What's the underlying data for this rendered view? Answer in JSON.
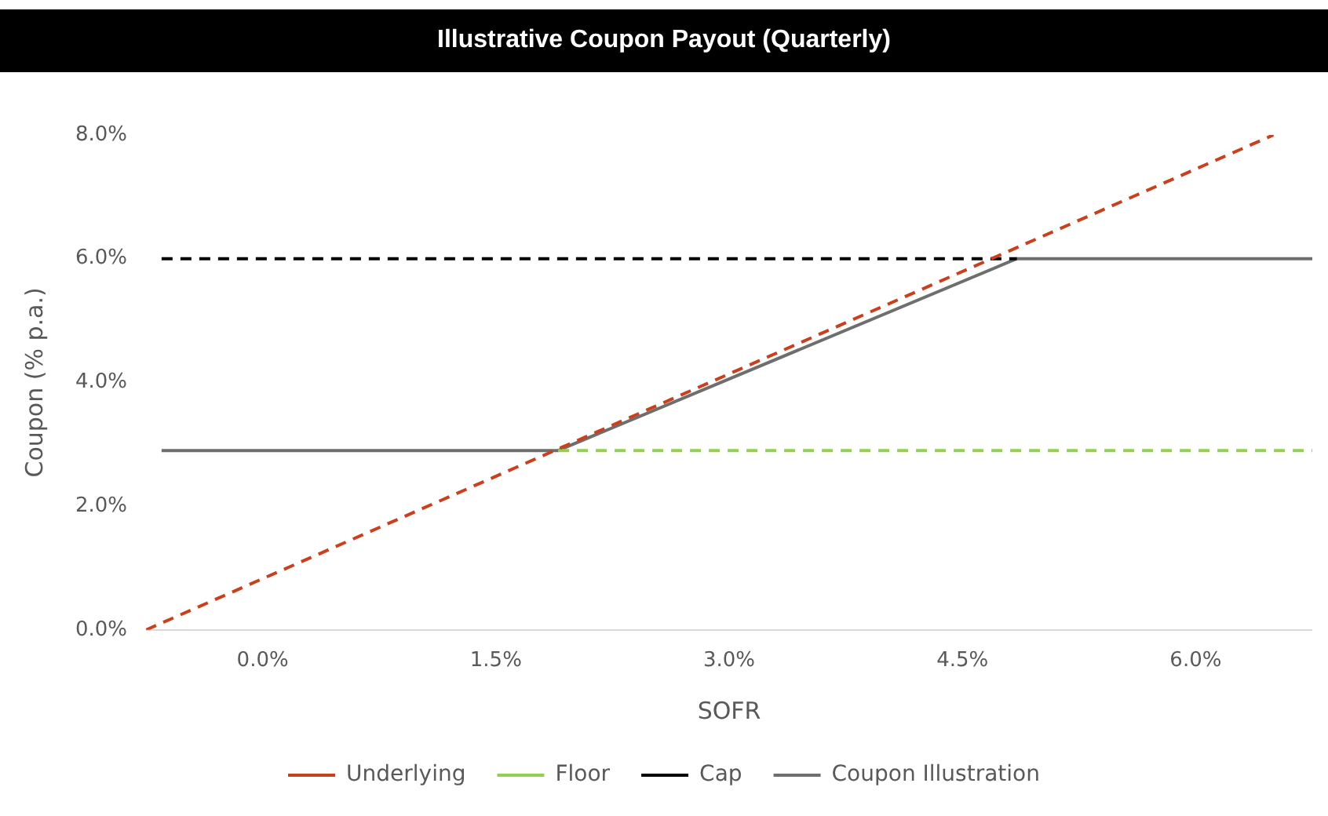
{
  "chart_data": {
    "type": "line",
    "title": "Illustrative Coupon Payout (Quarterly)",
    "xlabel": "SOFR",
    "ylabel": "Coupon (% p.a.)",
    "xlim": [
      -0.75,
      6.75
    ],
    "xticks": [
      {
        "value": 0,
        "label": "0.0%"
      },
      {
        "value": 1.5,
        "label": "1.5%"
      },
      {
        "value": 3,
        "label": "3.0%"
      },
      {
        "value": 4.5,
        "label": "4.5%"
      },
      {
        "value": 6,
        "label": "6.0%"
      }
    ],
    "ylim": [
      0,
      8
    ],
    "yticks": [
      {
        "value": 0,
        "label": "0.0%"
      },
      {
        "value": 2,
        "label": "2.0%"
      },
      {
        "value": 4,
        "label": "4.0%"
      },
      {
        "value": 6,
        "label": "6.0%"
      },
      {
        "value": 8,
        "label": "8.0%"
      }
    ],
    "grid": false,
    "legend": "bottom",
    "marker": "none",
    "series": [
      {
        "name": "Underlying",
        "color": "#c9401e",
        "line_style": "dashed",
        "x": [
          -0.75,
          6.5
        ],
        "values": [
          0,
          8.0
        ]
      },
      {
        "name": "Floor",
        "color": "#92d050",
        "line_style": "dashed",
        "x": [
          1.9,
          6.75
        ],
        "values": [
          2.9,
          2.9
        ]
      },
      {
        "name": "Cap",
        "color": "#000000",
        "line_style": "dashed",
        "x": [
          -0.65,
          4.85
        ],
        "values": [
          6.0,
          6.0
        ]
      },
      {
        "name": "Coupon Illustration",
        "color": "#6e6e6e",
        "line_style": "solid",
        "x": [
          -0.65,
          1.9,
          4.85,
          6.75
        ],
        "values": [
          2.9,
          2.9,
          6.0,
          6.0
        ]
      }
    ]
  }
}
